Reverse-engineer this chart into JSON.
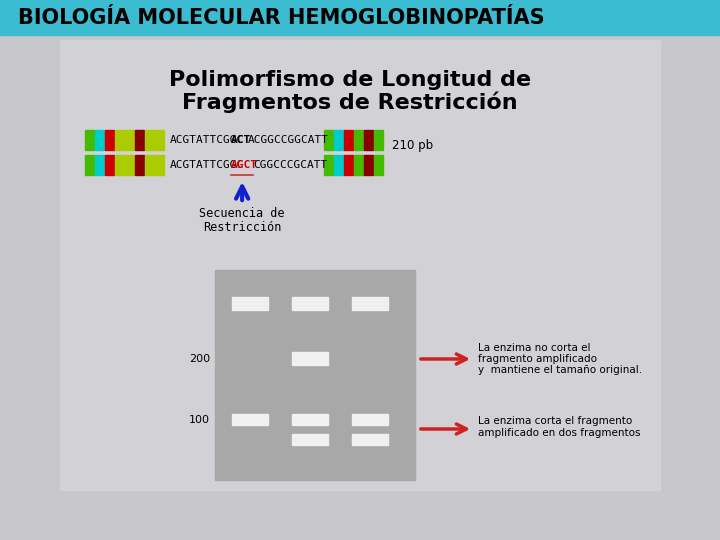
{
  "title": "BIOLOGÍA MOLECULAR HEMOGLOBINOPATÍAS",
  "title_bg": "#3bbcd0",
  "title_color": "#000000",
  "body_bg": "#c8c8cc",
  "inner_bg": "#c8c8cc",
  "subtitle_line1": "Polimorfismo de Longitud de",
  "subtitle_line2": "Fragmentos de Restricción",
  "seq1_prefix": "ACGTATTCGGC",
  "seq1_bold": "ACT",
  "seq1_suffix": "ACGGCCGGCATT",
  "seq2_prefix": "ACGTATTCGGC",
  "seq2_bold": "AGCT",
  "seq2_suffix": "CGGCCCGCATT",
  "label_210": "210 pb",
  "restrict_label_line1": "Secuencia de",
  "restrict_label_line2": "Restricción",
  "annot1_line1": "La enzima no corta el",
  "annot1_line2": "fragmento amplificado",
  "annot1_line3": "y  mantiene el tamaño original.",
  "annot2_line1": "La enzima corta el fragmento",
  "annot2_line2": "amplificado en dos fragmentos",
  "gel_bg": "#a8a8a8",
  "band_color": "#f0f0f0",
  "arrow_color": "#cc2222",
  "blue_arrow_color": "#1122cc",
  "label_200": "200",
  "label_100": "100",
  "left_bar_colors": [
    "#44cc00",
    "#00cccc",
    "#cc0000",
    "#aacc00",
    "#aacc00",
    "#880000",
    "#aacc00",
    "#aacc00"
  ],
  "right_bar_colors": [
    "#44cc00",
    "#00cccc",
    "#cc0000",
    "#44cc00",
    "#880000",
    "#44cc00"
  ],
  "title_fontsize": 15,
  "subtitle_fontsize": 16
}
